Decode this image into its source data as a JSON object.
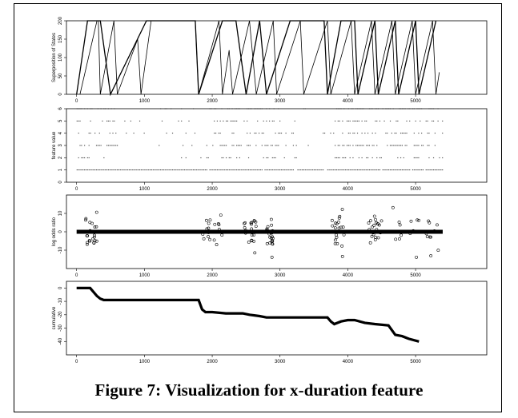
{
  "caption": "Figure 7: Visualization for x-duration feature",
  "chart_data": [
    {
      "type": "line",
      "ylabel": "Superposition of States",
      "xlim": [
        -150,
        6050
      ],
      "ylim": [
        0,
        200
      ],
      "x_ticks": [
        0,
        1000,
        2000,
        3000,
        4000,
        5000
      ],
      "y_ticks": [
        0,
        50,
        100,
        150,
        200
      ],
      "grid": false,
      "series": [
        {
          "points": [
            [
              0,
              0
            ],
            [
              160,
              200
            ],
            [
              350,
              200
            ],
            [
              500,
              0
            ],
            [
              1030,
              200
            ],
            [
              1750,
              200
            ],
            [
              1800,
              0
            ],
            [
              2150,
              200
            ],
            [
              2350,
              200
            ],
            [
              2500,
              0
            ],
            [
              2700,
              200
            ],
            [
              2800,
              0
            ],
            [
              3150,
              200
            ],
            [
              3650,
              200
            ],
            [
              3700,
              0
            ],
            [
              3900,
              200
            ],
            [
              4100,
              200
            ],
            [
              4150,
              0
            ],
            [
              4400,
              200
            ],
            [
              4450,
              0
            ],
            [
              4700,
              200
            ],
            [
              4750,
              0
            ],
            [
              5000,
              200
            ],
            [
              5050,
              0
            ],
            [
              5300,
              200
            ]
          ]
        },
        {
          "points": [
            [
              50,
              0
            ],
            [
              300,
              200
            ],
            [
              320,
              200
            ],
            [
              350,
              0
            ],
            [
              550,
              200
            ],
            [
              600,
              0
            ],
            [
              900,
              150
            ],
            [
              950,
              0
            ],
            [
              1100,
              200
            ],
            [
              1750,
              200
            ],
            [
              1800,
              0
            ],
            [
              2100,
              200
            ],
            [
              2150,
              0
            ],
            [
              2250,
              120
            ],
            [
              2300,
              0
            ],
            [
              2550,
              200
            ],
            [
              2650,
              0
            ],
            [
              2900,
              200
            ],
            [
              2950,
              0
            ],
            [
              3300,
              200
            ],
            [
              3350,
              0
            ],
            [
              3700,
              200
            ],
            [
              3750,
              0
            ],
            [
              4050,
              200
            ],
            [
              4100,
              0
            ],
            [
              4350,
              200
            ],
            [
              4400,
              0
            ],
            [
              4650,
              200
            ],
            [
              4700,
              0
            ],
            [
              4950,
              200
            ],
            [
              5000,
              0
            ],
            [
              5250,
              200
            ],
            [
              5300,
              0
            ],
            [
              5350,
              60
            ]
          ]
        }
      ]
    },
    {
      "type": "scatter",
      "ylabel": "feature value",
      "xlim": [
        -150,
        6050
      ],
      "ylim": [
        0,
        6
      ],
      "x_ticks": [
        0,
        1000,
        2000,
        3000,
        4000,
        5000
      ],
      "y_ticks": [
        0,
        1,
        2,
        3,
        4,
        5,
        6
      ],
      "grid": false,
      "levels": [
        1,
        2,
        3,
        4,
        5,
        6
      ]
    },
    {
      "type": "scatter",
      "ylabel": "log odds ratio",
      "xlim": [
        -150,
        6050
      ],
      "ylim": [
        -20,
        20
      ],
      "x_ticks": [
        0,
        1000,
        2000,
        3000,
        4000,
        5000
      ],
      "y_ticks": [
        -10,
        0,
        10
      ],
      "grid": false
    },
    {
      "type": "line",
      "ylabel": "cumulative",
      "xlim": [
        -150,
        6050
      ],
      "ylim": [
        -50,
        5
      ],
      "x_ticks": [
        0,
        1000,
        2000,
        3000,
        4000,
        5000
      ],
      "y_ticks": [
        0,
        -10,
        -20,
        -30,
        -40
      ],
      "grid": false,
      "points": [
        [
          0,
          0
        ],
        [
          200,
          0
        ],
        [
          250,
          -3
        ],
        [
          300,
          -6
        ],
        [
          350,
          -8
        ],
        [
          400,
          -9
        ],
        [
          1800,
          -9
        ],
        [
          1850,
          -16
        ],
        [
          1900,
          -18
        ],
        [
          2000,
          -18
        ],
        [
          2200,
          -19
        ],
        [
          2450,
          -19
        ],
        [
          2550,
          -20
        ],
        [
          2700,
          -21
        ],
        [
          2800,
          -22
        ],
        [
          3700,
          -22
        ],
        [
          3750,
          -25
        ],
        [
          3800,
          -27
        ],
        [
          3900,
          -25
        ],
        [
          4000,
          -24
        ],
        [
          4100,
          -24
        ],
        [
          4250,
          -26
        ],
        [
          4400,
          -27
        ],
        [
          4600,
          -28
        ],
        [
          4700,
          -35
        ],
        [
          4800,
          -36
        ],
        [
          4900,
          -38
        ],
        [
          5050,
          -40
        ]
      ]
    }
  ]
}
